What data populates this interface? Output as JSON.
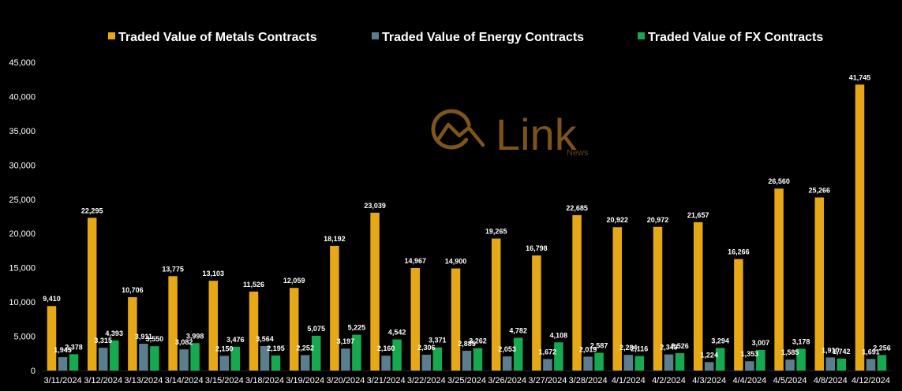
{
  "watermark": {
    "brand": "Link",
    "sub": "News",
    "color": "#8a5c1f"
  },
  "chart_data": {
    "type": "bar",
    "title": "",
    "xlabel": "",
    "ylabel": "",
    "ylim": [
      0,
      45000
    ],
    "yticks": [
      0,
      5000,
      10000,
      15000,
      20000,
      25000,
      30000,
      35000,
      40000,
      45000
    ],
    "grid": false,
    "legend_position": "top",
    "categories": [
      "3/11/2024",
      "3/12/2024",
      "3/13/2024",
      "3/14/2024",
      "3/15/2024",
      "3/18/2024",
      "3/19/2024",
      "3/20/2024",
      "3/21/2024",
      "3/22/2024",
      "3/25/2024",
      "3/26/2024",
      "3/27/2024",
      "3/28/2024",
      "4/1/2024",
      "4/2/2024",
      "4/3/2024",
      "4/4/2024",
      "4/5/2024",
      "4/8/2024",
      "4/12/2024"
    ],
    "series": [
      {
        "name": "Traded Value of Metals Contracts",
        "color": "#E6A817",
        "values": [
          9410,
          22295,
          10706,
          13775,
          13103,
          11526,
          12059,
          18192,
          23039,
          14967,
          14900,
          19265,
          16798,
          22685,
          20922,
          20972,
          21657,
          16266,
          26560,
          25266,
          41745
        ]
      },
      {
        "name": "Traded Value of Energy Contracts",
        "color": "#5B7E8E",
        "values": [
          1945,
          3315,
          3911,
          3082,
          2150,
          3564,
          2252,
          3197,
          2160,
          2306,
          2885,
          2053,
          1672,
          2019,
          2284,
          2349,
          1224,
          1353,
          1585,
          1910,
          1691
        ]
      },
      {
        "name": "Traded Value of FX Contracts",
        "color": "#17A94F",
        "values": [
          2378,
          4393,
          3550,
          3998,
          3476,
          2195,
          5075,
          5225,
          4542,
          3371,
          3262,
          4782,
          4108,
          2587,
          2116,
          2526,
          3294,
          3007,
          3178,
          1742,
          2256
        ]
      }
    ]
  }
}
